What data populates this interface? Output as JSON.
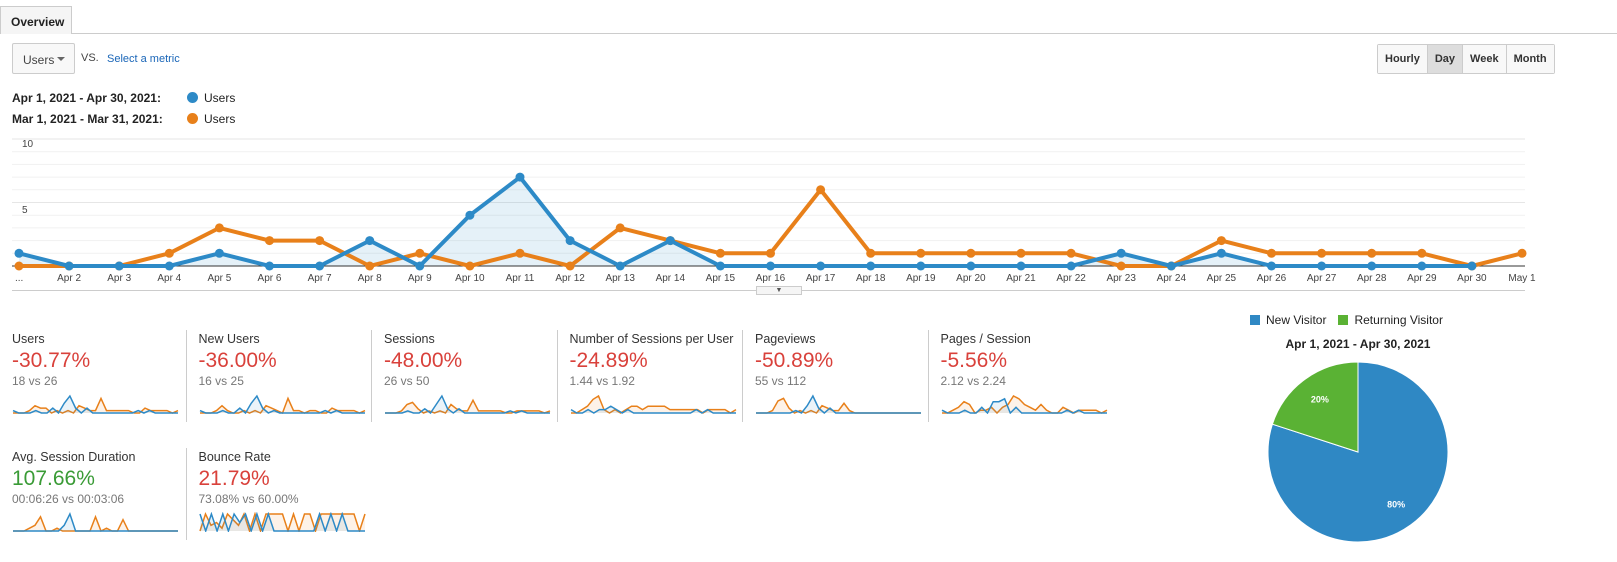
{
  "tabs": [
    "Overview"
  ],
  "metric_selector": {
    "value": "Users",
    "vs": "VS.",
    "select_metric": "Select a metric"
  },
  "granularity": {
    "options": [
      "Hourly",
      "Day",
      "Week",
      "Month"
    ],
    "selected": "Day"
  },
  "colors": {
    "current": "#2d8ac7",
    "previous": "#e8801a",
    "negative": "#d9413b",
    "positive": "#3a9b36",
    "new": "#2f88c4",
    "returning": "#5ab234"
  },
  "legend": [
    {
      "range": "Apr 1, 2021 - Apr 30, 2021:",
      "metric": "Users"
    },
    {
      "range": "Mar 1, 2021 - Mar 31, 2021:",
      "metric": "Users"
    }
  ],
  "chart_data": {
    "type": "line",
    "y_ticks": [
      "5",
      "10"
    ],
    "ylim": [
      0,
      10
    ],
    "x_labels": [
      "...",
      "Apr 2",
      "Apr 3",
      "Apr 4",
      "Apr 5",
      "Apr 6",
      "Apr 7",
      "Apr 8",
      "Apr 9",
      "Apr 10",
      "Apr 11",
      "Apr 12",
      "Apr 13",
      "Apr 14",
      "Apr 15",
      "Apr 16",
      "Apr 17",
      "Apr 18",
      "Apr 19",
      "Apr 20",
      "Apr 21",
      "Apr 22",
      "Apr 23",
      "Apr 24",
      "Apr 25",
      "Apr 26",
      "Apr 27",
      "Apr 28",
      "Apr 29",
      "Apr 30",
      "May 1"
    ],
    "series": [
      {
        "name": "Users (Apr 1 - Apr 30, 2021)",
        "values": [
          1,
          0,
          0,
          0,
          1,
          0,
          0,
          2,
          0,
          4,
          7,
          2,
          0,
          2,
          0,
          0,
          0,
          0,
          0,
          0,
          0,
          0,
          1,
          0,
          1,
          0,
          0,
          0,
          0,
          0
        ]
      },
      {
        "name": "Users (Mar 1 - Mar 31, 2021)",
        "values": [
          0,
          0,
          0,
          1,
          3,
          2,
          2,
          0,
          1,
          0,
          1,
          0,
          3,
          2,
          1,
          1,
          6,
          1,
          1,
          1,
          1,
          1,
          0,
          0,
          2,
          1,
          1,
          1,
          1,
          0,
          1
        ]
      }
    ]
  },
  "metrics": [
    {
      "label": "Users",
      "change": "-30.77%",
      "compare": "18 vs 26",
      "positive": false,
      "spark": [
        [
          1,
          0,
          0,
          0,
          1,
          0,
          0,
          2,
          0,
          4,
          7,
          2,
          0,
          2,
          0,
          0,
          0,
          0,
          0,
          0,
          0,
          0,
          1,
          0,
          1,
          0,
          0,
          0,
          0,
          0
        ],
        [
          0,
          0,
          0,
          1,
          3,
          2,
          2,
          0,
          1,
          0,
          1,
          0,
          3,
          2,
          1,
          1,
          6,
          1,
          1,
          1,
          1,
          1,
          0,
          0,
          2,
          1,
          1,
          1,
          1,
          0,
          1
        ]
      ]
    },
    {
      "label": "New Users",
      "change": "-36.00%",
      "compare": "16 vs 25",
      "positive": false,
      "spark": [
        [
          1,
          0,
          0,
          0,
          1,
          0,
          0,
          2,
          0,
          4,
          7,
          2,
          0,
          1,
          0,
          0,
          0,
          0,
          0,
          0,
          0,
          0,
          1,
          0,
          1,
          0,
          0,
          0,
          0,
          0
        ],
        [
          0,
          0,
          0,
          1,
          3,
          1,
          0,
          0,
          1,
          0,
          1,
          0,
          3,
          2,
          1,
          0,
          6,
          1,
          1,
          0,
          1,
          1,
          0,
          0,
          2,
          1,
          1,
          1,
          1,
          0,
          1
        ]
      ]
    },
    {
      "label": "Sessions",
      "change": "-48.00%",
      "compare": "26 vs 50",
      "positive": false,
      "spark": [
        [
          0,
          0,
          0,
          0,
          1,
          0,
          0,
          2,
          0,
          4,
          8,
          2,
          0,
          2,
          0,
          0,
          0,
          0,
          0,
          0,
          0,
          0,
          1,
          0,
          1,
          0,
          0,
          0,
          0,
          0
        ],
        [
          0,
          0,
          0,
          1,
          4,
          5,
          2,
          0,
          1,
          0,
          1,
          0,
          4,
          2,
          1,
          1,
          6,
          1,
          1,
          1,
          1,
          1,
          0,
          0,
          1,
          1,
          1,
          1,
          1,
          0,
          1
        ]
      ]
    },
    {
      "label": "Number of Sessions per User",
      "change": "-24.89%",
      "compare": "1.44 vs 1.92",
      "positive": false,
      "spark": [
        [
          1,
          0,
          0,
          1,
          0,
          1,
          1,
          2,
          1,
          0,
          1,
          0,
          0,
          0,
          0,
          0,
          0,
          0,
          0,
          0,
          0,
          0,
          1,
          0,
          1,
          0,
          0,
          0,
          0,
          0
        ],
        [
          0,
          0,
          1,
          2,
          4,
          5,
          1,
          0,
          1,
          0,
          1,
          2,
          2,
          1,
          2,
          2,
          2,
          2,
          1,
          1,
          1,
          1,
          1,
          1,
          0,
          1,
          1,
          1,
          1,
          0,
          1
        ]
      ]
    },
    {
      "label": "Pageviews",
      "change": "-50.89%",
      "compare": "55 vs 112",
      "positive": false,
      "spark": [
        [
          0,
          0,
          0,
          0,
          0,
          0,
          0,
          1,
          0,
          3,
          7,
          2,
          0,
          2,
          0,
          0,
          0,
          0,
          0,
          0,
          0,
          0,
          0,
          0,
          0,
          0,
          0,
          0,
          0,
          0
        ],
        [
          0,
          0,
          0,
          1,
          5,
          6,
          2,
          0,
          1,
          0,
          1,
          0,
          3,
          2,
          1,
          1,
          4,
          1,
          0,
          0,
          0,
          0,
          0,
          0,
          0,
          0,
          0,
          0,
          0,
          0,
          0
        ]
      ]
    },
    {
      "label": "Pages / Session",
      "change": "-5.56%",
      "compare": "2.12 vs 2.24",
      "positive": false,
      "spark": [
        [
          1,
          0,
          0,
          0,
          1,
          0,
          0,
          2,
          0,
          4,
          4,
          5,
          0,
          2,
          0,
          0,
          0,
          0,
          0,
          0,
          0,
          0,
          1,
          0,
          1,
          0,
          0,
          0,
          0,
          0
        ],
        [
          0,
          0,
          1,
          2,
          4,
          3,
          0,
          1,
          1,
          2,
          0,
          2,
          3,
          6,
          5,
          3,
          2,
          1,
          3,
          1,
          0,
          0,
          2,
          1,
          0,
          1,
          1,
          1,
          1,
          0,
          1
        ]
      ]
    },
    {
      "label": "Avg. Session Duration",
      "change": "107.66%",
      "compare": "00:06:26 vs 00:03:06",
      "positive": true,
      "spark": [
        [
          0,
          0,
          0,
          0,
          0,
          0,
          0,
          0,
          0,
          2,
          6,
          0,
          0,
          0,
          0,
          0,
          0,
          0,
          0,
          0,
          0,
          0,
          0,
          0,
          0,
          0,
          0,
          0,
          0,
          0
        ],
        [
          0,
          0,
          0,
          1,
          2,
          5,
          0,
          0,
          1,
          0,
          0,
          0,
          0,
          0,
          0,
          5,
          0,
          1,
          0,
          0,
          4,
          0,
          0,
          0,
          0,
          0,
          0,
          0,
          0,
          0,
          0
        ]
      ]
    },
    {
      "label": "Bounce Rate",
      "change": "21.79%",
      "compare": "73.08% vs 60.00%",
      "positive": false,
      "spark": [
        [
          6,
          0,
          6,
          0,
          6,
          0,
          6,
          3,
          6,
          0,
          6,
          0,
          6,
          0,
          0,
          0,
          0,
          0,
          0,
          0,
          0,
          6,
          0,
          6,
          0,
          6,
          0,
          0,
          0,
          0
        ],
        [
          0,
          6,
          2,
          3,
          1,
          6,
          4,
          2,
          6,
          0,
          6,
          0,
          6,
          6,
          6,
          6,
          0,
          6,
          0,
          6,
          6,
          0,
          6,
          6,
          6,
          6,
          6,
          6,
          6,
          0,
          6
        ]
      ]
    }
  ],
  "pie": {
    "legend": [
      "New Visitor",
      "Returning Visitor"
    ],
    "title": "Apr 1, 2021 - Apr 30, 2021",
    "slices": [
      {
        "name": "New Visitor",
        "value": 80,
        "label": "80%"
      },
      {
        "name": "Returning Visitor",
        "value": 20,
        "label": "20%"
      }
    ]
  }
}
